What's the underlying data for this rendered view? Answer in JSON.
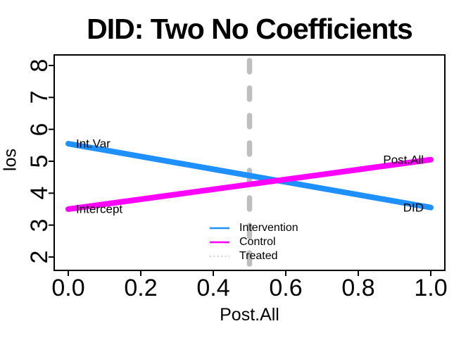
{
  "title": "DID: Two No Coefficients",
  "axes": {
    "x_label": "Post.All",
    "y_label": "los",
    "x_ticks": [
      "0.0",
      "0.2",
      "0.4",
      "0.6",
      "0.8",
      "1.0"
    ],
    "x_tick_values": [
      0,
      0.2,
      0.4,
      0.6,
      0.8,
      1.0
    ],
    "y_ticks": [
      "2",
      "3",
      "4",
      "5",
      "6",
      "7",
      "8"
    ],
    "y_tick_values": [
      2,
      3,
      4,
      5,
      6,
      7,
      8
    ]
  },
  "chart_data": {
    "type": "line",
    "title": "DID: Two No Coefficients",
    "xlabel": "Post.All",
    "ylabel": "los",
    "xlim": [
      0,
      1
    ],
    "ylim": [
      2,
      8
    ],
    "grid": false,
    "legend_position": "inside-bottom-center",
    "series": [
      {
        "name": "Intervention",
        "color": "#1E90FF",
        "kind": "line",
        "x": [
          0,
          1
        ],
        "y": [
          5.55,
          3.55
        ]
      },
      {
        "name": "Control",
        "color": "#FF00FF",
        "kind": "line",
        "x": [
          0,
          1
        ],
        "y": [
          3.5,
          5.05
        ]
      },
      {
        "name": "Treated",
        "color": "#BEBEBE",
        "kind": "vline",
        "x": 0.5
      }
    ],
    "annotations": [
      {
        "text": "Int.Var",
        "x": 0,
        "y": 5.55,
        "side": "right"
      },
      {
        "text": "Intercept",
        "x": 0,
        "y": 3.5,
        "side": "right"
      },
      {
        "text": "Post.All",
        "x": 1,
        "y": 5.05,
        "side": "left"
      },
      {
        "text": "DID",
        "x": 1,
        "y": 3.55,
        "side": "left"
      }
    ],
    "legend": {
      "items": [
        {
          "label": "Intervention",
          "color": "#1E90FF",
          "line": "solid"
        },
        {
          "label": "Control",
          "color": "#FF00FF",
          "line": "solid"
        },
        {
          "label": "Treated",
          "color": "#BEBEBE",
          "line": "dotted"
        }
      ]
    }
  },
  "colors": {
    "intervention": "#1E90FF",
    "control": "#FF00FF",
    "treated": "#BEBEBE",
    "axis": "#000000",
    "background": "#FFFFFF"
  }
}
